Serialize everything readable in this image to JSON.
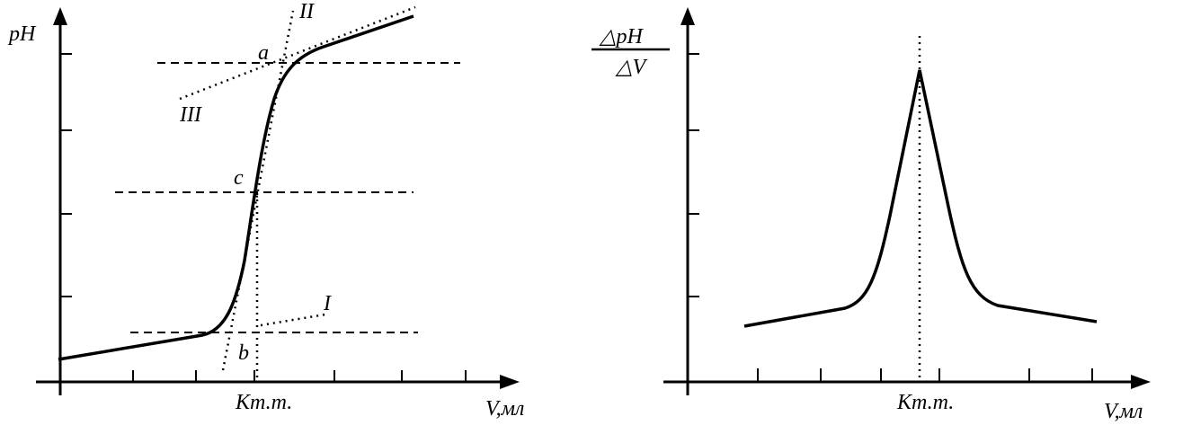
{
  "left": {
    "y_label": "pH",
    "x_label": "V,мл",
    "x_mark": "Кт.т.",
    "points": {
      "a": "a",
      "b": "b",
      "c": "c"
    },
    "lines": {
      "I": "I",
      "II": "II",
      "III": "III"
    }
  },
  "right": {
    "y_label_top": "△pH",
    "y_label_bottom": "△V",
    "x_label": "V,мл",
    "x_mark": "Кт.т."
  }
}
